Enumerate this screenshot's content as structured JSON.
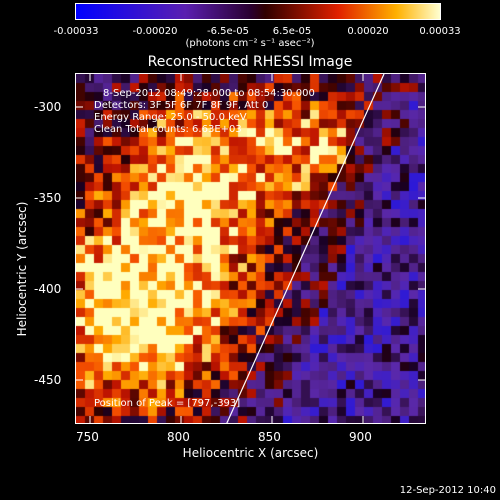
{
  "colorbar": {
    "ticks": [
      "-0.00033",
      "-0.00020",
      "-6.5e-05",
      "6.5e-05",
      "0.00020",
      "0.00033"
    ],
    "unit": "(photons cm⁻² s⁻¹ asec⁻²)"
  },
  "image": {
    "title": "Reconstructed RHESSI Image",
    "time_range": "8-Sep-2012 08:49:28.000 to 08:54:30.000",
    "detectors": "Detectors: 3F 5F 6F 7F 8F 9F, Att 0",
    "energy": "Energy Range: 25.0 - 50.0 keV",
    "method": "Clean     Total counts: 6.63E+03",
    "peak": "Position of Peak = [797,-393]"
  },
  "axes": {
    "xlabel": "Heliocentric X (arcsec)",
    "ylabel": "Heliocentric Y (arcsec)",
    "xticks": [
      "750",
      "800",
      "850",
      "900"
    ],
    "yticks": [
      "-300",
      "-350",
      "-400",
      "-450"
    ]
  },
  "footer": {
    "timestamp": "12-Sep-2012 10:40"
  }
}
